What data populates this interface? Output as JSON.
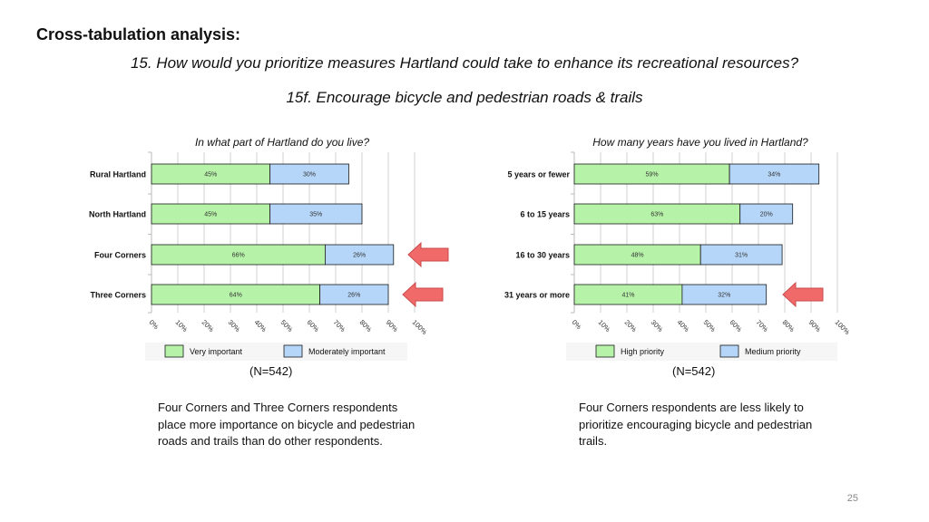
{
  "slide": {
    "heading": "Cross-tabulation analysis:",
    "question": "15. How would you prioritize measures Hartland could take to enhance its recreational resources?",
    "subquestion": "15f. Encourage bicycle and pedestrian roads & trails",
    "page_number": "25"
  },
  "colors": {
    "series1": "#b6f2a8",
    "series2": "#b5d6f8",
    "bar_border": "#1a1a1a",
    "arrow": "#f06a6a"
  },
  "chart_data": [
    {
      "type": "bar",
      "orientation": "horizontal",
      "stacked": true,
      "title": "In what part of Hartland do you live?",
      "categories": [
        "Rural Hartland",
        "North Hartland",
        "Four Corners",
        "Three Corners"
      ],
      "series": [
        {
          "name": "Very important",
          "values": [
            45,
            45,
            66,
            64
          ],
          "labels": [
            "45%",
            "45%",
            "66%",
            "64%"
          ]
        },
        {
          "name": "Moderately important",
          "values": [
            30,
            35,
            26,
            26
          ],
          "labels": [
            "30%",
            "35%",
            "26%",
            "26%"
          ]
        }
      ],
      "xlim": [
        0,
        100
      ],
      "xticks": [
        "0%",
        "10%",
        "20%",
        "30%",
        "40%",
        "50%",
        "60%",
        "70%",
        "80%",
        "90%",
        "100%"
      ],
      "highlight": [
        "Four Corners",
        "Three Corners"
      ],
      "n_label": "(N=542)",
      "finding": [
        "Four Corners and Three Corners respondents",
        "place more importance on bicycle and pedestrian",
        "roads and trails than do other respondents."
      ]
    },
    {
      "type": "bar",
      "orientation": "horizontal",
      "stacked": true,
      "title": "How many years have you lived in Hartland?",
      "categories": [
        "5 years or fewer",
        "6 to 15 years",
        "16 to 30 years",
        "31 years or more"
      ],
      "series": [
        {
          "name": "High priority",
          "values": [
            59,
            63,
            48,
            41
          ],
          "labels": [
            "59%",
            "63%",
            "48%",
            "41%"
          ]
        },
        {
          "name": "Medium priority",
          "values": [
            34,
            20,
            31,
            32
          ],
          "labels": [
            "34%",
            "20%",
            "31%",
            "32%"
          ]
        }
      ],
      "xlim": [
        0,
        100
      ],
      "xticks": [
        "0%",
        "10%",
        "20%",
        "30%",
        "40%",
        "50%",
        "60%",
        "70%",
        "80%",
        "90%",
        "100%"
      ],
      "highlight": [
        "31 years or more"
      ],
      "n_label": "(N=542)",
      "finding": [
        "Four Corners respondents are less likely to",
        "prioritize encouraging bicycle and pedestrian",
        "trails."
      ]
    }
  ]
}
